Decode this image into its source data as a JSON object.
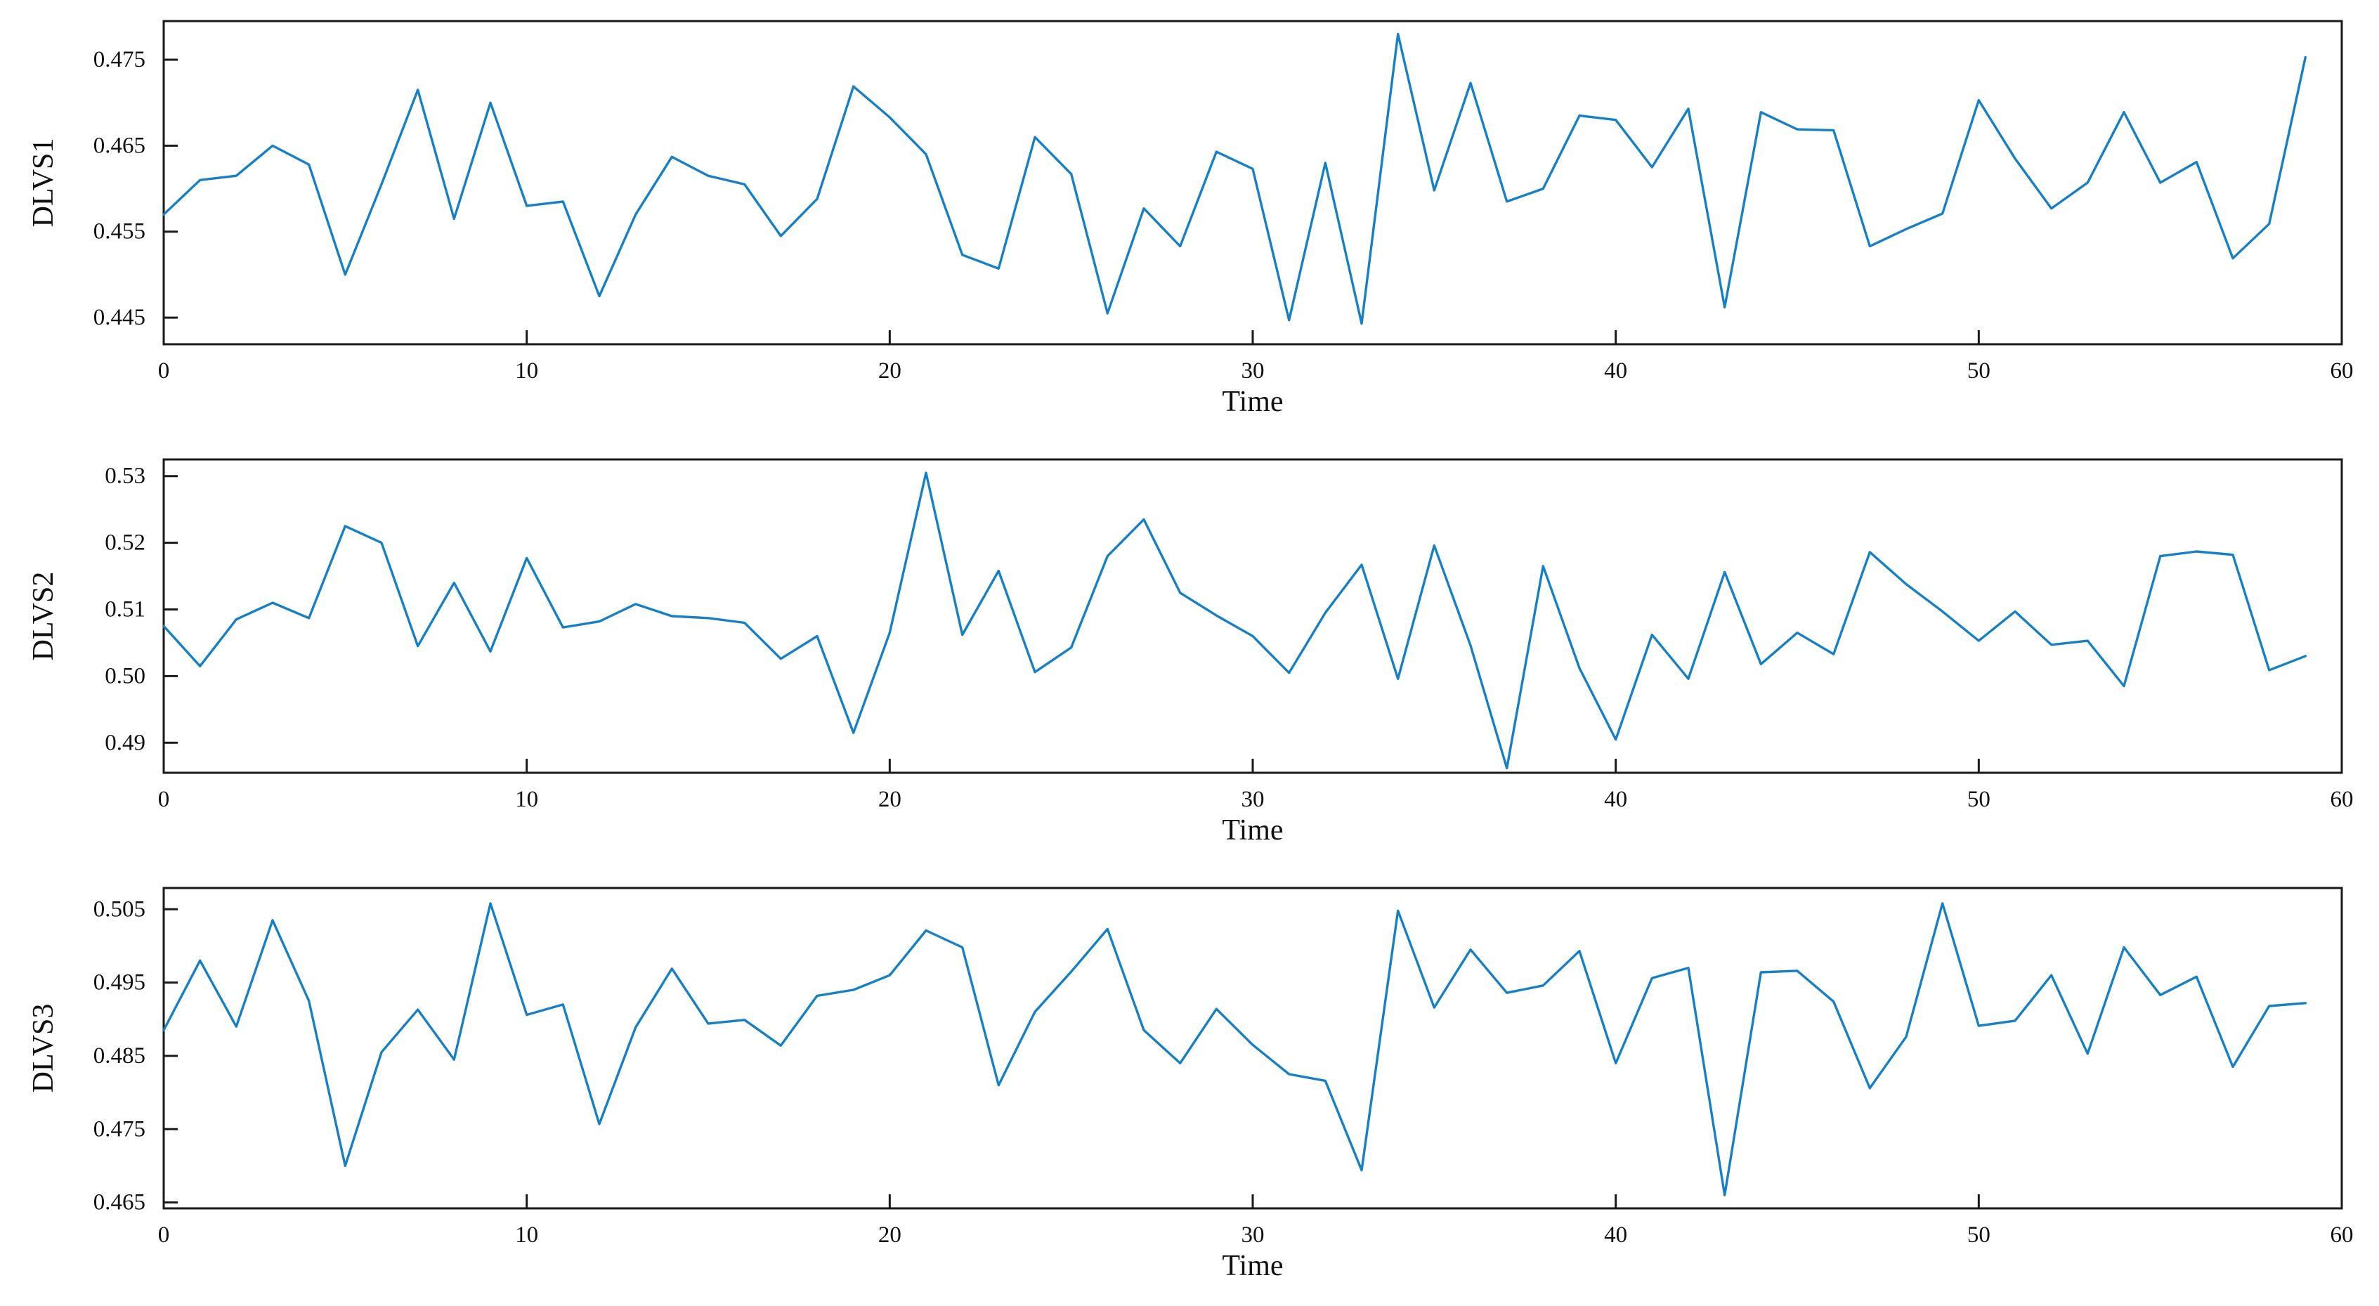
{
  "figure": {
    "background": "#ffffff",
    "line_color": "#1780c4",
    "axis_color": "#1a1a1a"
  },
  "chart_data": [
    {
      "type": "line",
      "title": "",
      "ylabel": "DLVS1",
      "xlabel": "Time",
      "xlim": [
        0,
        60
      ],
      "ylim": [
        0.4419,
        0.4795
      ],
      "x_start": 0,
      "x_step": 1,
      "x_ticks": [
        0,
        10,
        20,
        30,
        40,
        50,
        60
      ],
      "x_tick_labels": [
        "0",
        "10",
        "20",
        "30",
        "40",
        "50",
        "60"
      ],
      "y_ticks": [
        0.445,
        0.455,
        0.465,
        0.475
      ],
      "y_tick_labels": [
        "0.445",
        "0.455",
        "0.465",
        "0.475"
      ],
      "grid": false,
      "legend": null,
      "values": [
        0.457,
        0.461,
        0.4615,
        0.465,
        0.4628,
        0.45,
        0.4605,
        0.4715,
        0.4565,
        0.47,
        0.458,
        0.4585,
        0.4475,
        0.457,
        0.4637,
        0.4615,
        0.4605,
        0.4545,
        0.4588,
        0.4719,
        0.4683,
        0.464,
        0.4523,
        0.4507,
        0.466,
        0.4617,
        0.4455,
        0.4577,
        0.4533,
        0.4643,
        0.4623,
        0.4447,
        0.463,
        0.4443,
        0.478,
        0.4598,
        0.4723,
        0.4585,
        0.46,
        0.4685,
        0.468,
        0.4625,
        0.4693,
        0.4462,
        0.4689,
        0.4669,
        0.4668,
        0.4533,
        0.4553,
        0.4571,
        0.4703,
        0.4635,
        0.4577,
        0.4607,
        0.4689,
        0.4607,
        0.4631,
        0.4519,
        0.4559,
        0.4753
      ]
    },
    {
      "type": "line",
      "title": "",
      "ylabel": "DLVS2",
      "xlabel": "Time",
      "xlim": [
        0,
        60
      ],
      "ylim": [
        0.4855,
        0.5325
      ],
      "x_start": 0,
      "x_step": 1,
      "x_ticks": [
        0,
        10,
        20,
        30,
        40,
        50,
        60
      ],
      "x_tick_labels": [
        "0",
        "10",
        "20",
        "30",
        "40",
        "50",
        "60"
      ],
      "y_ticks": [
        0.49,
        0.5,
        0.51,
        0.52,
        0.53
      ],
      "y_tick_labels": [
        "0.49",
        "0.50",
        "0.51",
        "0.52",
        "0.53"
      ],
      "grid": false,
      "legend": null,
      "values": [
        0.5075,
        0.5015,
        0.5085,
        0.511,
        0.5087,
        0.5225,
        0.52,
        0.5045,
        0.514,
        0.5037,
        0.5177,
        0.5073,
        0.5082,
        0.5108,
        0.509,
        0.5087,
        0.508,
        0.5026,
        0.506,
        0.4915,
        0.5065,
        0.5305,
        0.5062,
        0.5158,
        0.5006,
        0.5043,
        0.518,
        0.5235,
        0.5125,
        0.5091,
        0.506,
        0.5005,
        0.5095,
        0.5167,
        0.4996,
        0.5196,
        0.5046,
        0.4862,
        0.5165,
        0.5012,
        0.4905,
        0.5062,
        0.4996,
        0.5156,
        0.5018,
        0.5065,
        0.5033,
        0.5186,
        0.5138,
        0.5097,
        0.5053,
        0.5097,
        0.5047,
        0.5053,
        0.4985,
        0.518,
        0.5187,
        0.5182,
        0.5009,
        0.503
      ]
    },
    {
      "type": "line",
      "title": "",
      "ylabel": "DLVS3",
      "xlabel": "Time",
      "xlim": [
        0,
        60
      ],
      "ylim": [
        0.4642,
        0.5079
      ],
      "x_start": 0,
      "x_step": 1,
      "x_ticks": [
        0,
        10,
        20,
        30,
        40,
        50,
        60
      ],
      "x_tick_labels": [
        "0",
        "10",
        "20",
        "30",
        "40",
        "50",
        "60"
      ],
      "y_ticks": [
        0.465,
        0.475,
        0.485,
        0.495,
        0.505
      ],
      "y_tick_labels": [
        "0.465",
        "0.475",
        "0.485",
        "0.495",
        "0.505"
      ],
      "grid": false,
      "legend": null,
      "values": [
        0.4885,
        0.498,
        0.489,
        0.5035,
        0.4925,
        0.47,
        0.4855,
        0.4913,
        0.4845,
        0.5058,
        0.4906,
        0.492,
        0.4757,
        0.4889,
        0.4969,
        0.4894,
        0.4899,
        0.4864,
        0.4932,
        0.494,
        0.496,
        0.5021,
        0.4998,
        0.481,
        0.491,
        0.4965,
        0.5023,
        0.4885,
        0.484,
        0.4914,
        0.4865,
        0.4825,
        0.4816,
        0.4694,
        0.5048,
        0.4916,
        0.4995,
        0.4936,
        0.4946,
        0.4993,
        0.484,
        0.4956,
        0.497,
        0.466,
        0.4964,
        0.4966,
        0.4924,
        0.4806,
        0.4876,
        0.5058,
        0.4891,
        0.4898,
        0.496,
        0.4853,
        0.4998,
        0.4933,
        0.4958,
        0.4835,
        0.4918,
        0.4922
      ]
    }
  ]
}
